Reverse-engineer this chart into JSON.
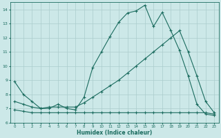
{
  "xlabel": "Humidex (Indice chaleur)",
  "bg_color": "#cce8e8",
  "grid_color": "#aacccc",
  "line_color": "#1a6b5e",
  "xlim": [
    -0.5,
    23.5
  ],
  "ylim": [
    6,
    14.5
  ],
  "yticks": [
    6,
    7,
    8,
    9,
    10,
    11,
    12,
    13,
    14
  ],
  "xticks": [
    0,
    1,
    2,
    3,
    4,
    5,
    6,
    7,
    8,
    9,
    10,
    11,
    12,
    13,
    14,
    15,
    16,
    17,
    18,
    19,
    20,
    21,
    22,
    23
  ],
  "series1_x": [
    0,
    1,
    2,
    3,
    4,
    5,
    6,
    7,
    8,
    9,
    10,
    11,
    12,
    13,
    14,
    15,
    16,
    17,
    18,
    19,
    20,
    21,
    22,
    23
  ],
  "series1_y": [
    8.9,
    8.0,
    7.5,
    7.0,
    7.0,
    7.3,
    7.0,
    6.9,
    7.8,
    9.9,
    11.0,
    12.1,
    13.1,
    13.75,
    13.9,
    14.3,
    12.8,
    13.8,
    12.5,
    11.1,
    9.3,
    7.3,
    6.6,
    6.5
  ],
  "series2_x": [
    0,
    1,
    2,
    3,
    4,
    5,
    6,
    7,
    8,
    9,
    10,
    11,
    12,
    13,
    14,
    15,
    16,
    17,
    18,
    19,
    20,
    21,
    22,
    23
  ],
  "series2_y": [
    7.5,
    7.3,
    7.1,
    7.0,
    7.1,
    7.1,
    7.1,
    7.1,
    7.4,
    7.8,
    8.2,
    8.6,
    9.0,
    9.5,
    10.0,
    10.5,
    11.0,
    11.5,
    12.0,
    12.5,
    11.0,
    9.3,
    7.5,
    6.7
  ],
  "series3_x": [
    0,
    1,
    2,
    3,
    4,
    5,
    6,
    7,
    8,
    9,
    10,
    11,
    12,
    13,
    14,
    15,
    16,
    17,
    18,
    19,
    20,
    21,
    22,
    23
  ],
  "series3_y": [
    6.9,
    6.8,
    6.7,
    6.7,
    6.7,
    6.7,
    6.7,
    6.7,
    6.7,
    6.7,
    6.7,
    6.7,
    6.7,
    6.7,
    6.7,
    6.7,
    6.7,
    6.7,
    6.7,
    6.7,
    6.7,
    6.7,
    6.7,
    6.6
  ]
}
